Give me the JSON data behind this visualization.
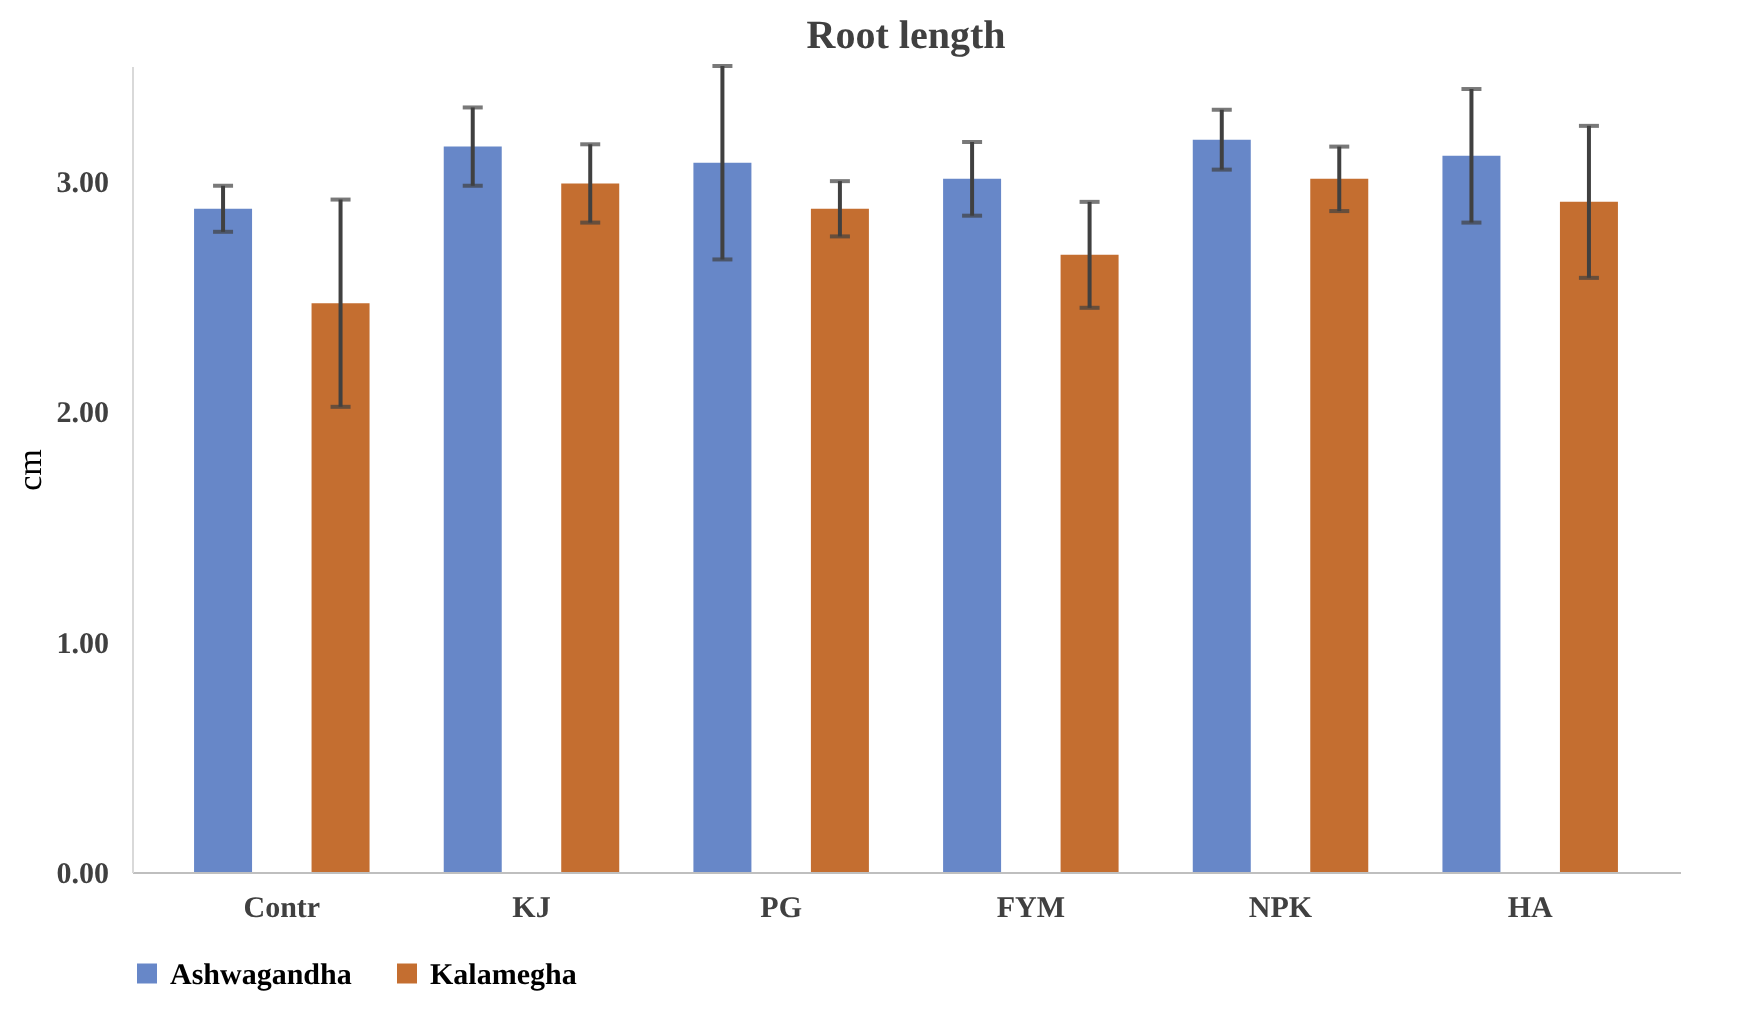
{
  "chart_data": {
    "type": "bar",
    "title": "Root length",
    "ylabel": "cm",
    "categories": [
      "Contr",
      "KJ",
      "PG",
      "FYM",
      "NPK",
      "HA"
    ],
    "series": [
      {
        "name": "Ashwagandha",
        "color": "#6787c8",
        "values": [
          2.88,
          3.15,
          3.08,
          3.01,
          3.18,
          3.11
        ],
        "errors": [
          0.1,
          0.17,
          0.42,
          0.16,
          0.13,
          0.29
        ]
      },
      {
        "name": "Kalamegha",
        "color": "#c46e30",
        "values": [
          2.47,
          2.99,
          2.88,
          2.68,
          3.01,
          2.91
        ],
        "errors": [
          0.45,
          0.17,
          0.12,
          0.23,
          0.14,
          0.33
        ]
      }
    ],
    "ylim": [
      0,
      3.5
    ],
    "yticks": [
      {
        "value": 0,
        "label": "0.00"
      },
      {
        "value": 1,
        "label": "1.00"
      },
      {
        "value": 2,
        "label": "2.00"
      },
      {
        "value": 3,
        "label": "3.00"
      }
    ],
    "grid": false,
    "legend": "bottom"
  }
}
